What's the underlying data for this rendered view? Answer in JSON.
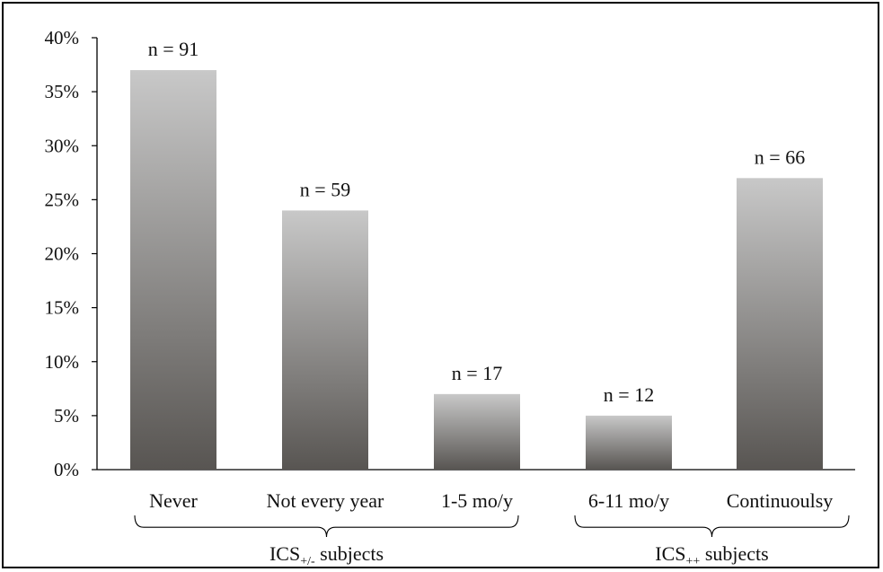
{
  "chart_data": {
    "type": "bar",
    "categories": [
      "Never",
      "Not every year",
      "1-5 mo/y",
      "6-11 mo/y",
      "Continuoulsy"
    ],
    "values": [
      37,
      24,
      7,
      5,
      27
    ],
    "value_unit": "%",
    "data_labels": [
      "n = 91",
      "n = 59",
      "n = 17",
      "n = 12",
      "n = 66"
    ],
    "ylim": [
      0,
      40
    ],
    "yticks": [
      "0%",
      "5%",
      "10%",
      "15%",
      "20%",
      "25%",
      "30%",
      "35%",
      "40%"
    ],
    "grid": false,
    "bar_gradient": {
      "top": "#c8c8c8",
      "bottom": "#585552"
    },
    "groups": [
      {
        "label_main": "ICS",
        "label_sub": "+/-",
        "label_tail": " subjects",
        "categories": [
          "Never",
          "Not every year",
          "1-5 mo/y"
        ]
      },
      {
        "label_main": "ICS",
        "label_sub": "++",
        "label_tail": " subjects",
        "categories": [
          "6-11 mo/y",
          "Continuoulsy"
        ]
      }
    ]
  }
}
